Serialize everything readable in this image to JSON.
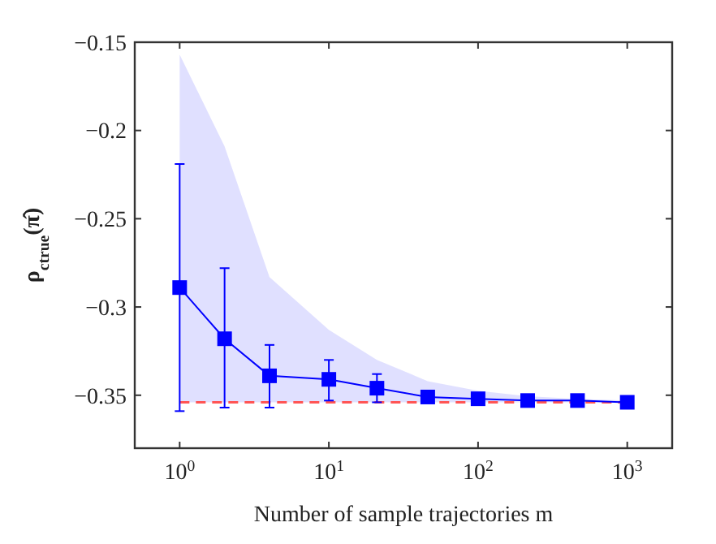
{
  "chart_data": {
    "type": "line",
    "xlabel": "Number of sample trajectories m",
    "ylabel": "ρ$_{ctrue}$(π̂)",
    "log": "x",
    "xlim": [
      0.5,
      2000
    ],
    "ylim": [
      -0.38,
      -0.15
    ],
    "xticks": [
      {
        "value": 1,
        "label": "10$^{0}$"
      },
      {
        "value": 10,
        "label": "10$^{1}$"
      },
      {
        "value": 100,
        "label": "10$^{2}$"
      },
      {
        "value": 1000,
        "label": "10$^{3}$"
      }
    ],
    "yticks": [
      {
        "value": -0.15,
        "label": "−0.15"
      },
      {
        "value": -0.2,
        "label": "−0.2"
      },
      {
        "value": -0.25,
        "label": "−0.25"
      },
      {
        "value": -0.3,
        "label": "−0.3"
      },
      {
        "value": -0.35,
        "label": "−0.35"
      }
    ],
    "grid": false,
    "marker": "square",
    "line_style": "solid",
    "series": [
      {
        "color": "#0000ff",
        "x": [
          1,
          2,
          4,
          10,
          21,
          46,
          100,
          215,
          464,
          1000
        ],
        "values": [
          -0.289,
          -0.318,
          -0.339,
          -0.341,
          -0.346,
          -0.351,
          -0.352,
          -0.353,
          -0.353,
          -0.354
        ],
        "errors": [
          [
            -0.359,
            -0.219
          ],
          [
            -0.357,
            -0.278
          ],
          [
            -0.357,
            -0.3215
          ],
          [
            -0.353,
            -0.33
          ],
          [
            -0.354,
            -0.338
          ],
          null,
          null,
          null,
          null,
          null
        ],
        "lower": [
          -0.354,
          -0.354,
          -0.354,
          -0.354,
          -0.354,
          -0.354,
          -0.354,
          -0.354,
          -0.354,
          -0.354
        ],
        "upper": [
          -0.157,
          -0.209,
          -0.283,
          -0.313,
          -0.33,
          -0.342,
          -0.3475,
          -0.3506,
          -0.352,
          -0.353
        ]
      }
    ],
    "ref_lines": [
      {
        "axis": "y",
        "value": -0.354,
        "color": "#ff5555",
        "line_style": "dashed"
      }
    ]
  }
}
